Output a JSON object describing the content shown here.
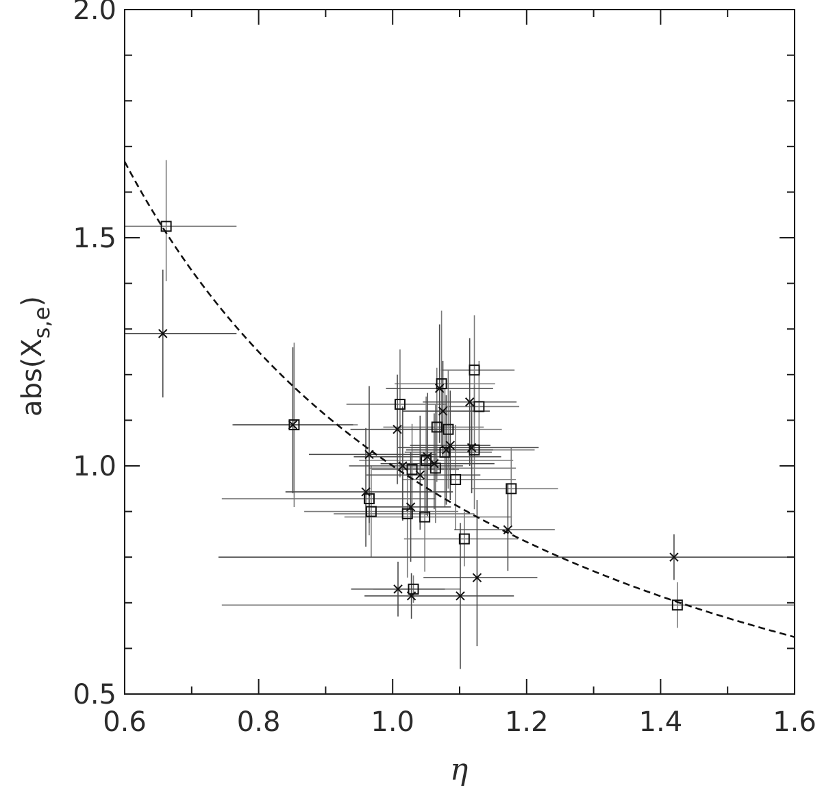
{
  "chart_data": {
    "type": "scatter",
    "xlabel": "η",
    "ylabel": "abs(X",
    "ylabel_subscript": "s,e",
    "ylabel_close": ")",
    "xlim": [
      0.6,
      1.6
    ],
    "ylim": [
      0.5,
      2.0
    ],
    "xticks": [
      0.6,
      0.8,
      1.0,
      1.2,
      1.4,
      1.6
    ],
    "yticks": [
      0.5,
      1.0,
      1.5,
      2.0
    ],
    "xtick_labels": [
      "0.6",
      "0.8",
      "1.0",
      "1.2",
      "1.4",
      "1.6"
    ],
    "ytick_labels": [
      "0.5",
      "1.0",
      "1.5",
      "2.0"
    ],
    "grid": false,
    "curve": {
      "style": "dashed",
      "form": "a / x",
      "a": 1.0,
      "x_range": [
        0.6,
        1.6
      ]
    },
    "series": [
      {
        "marker": "square",
        "points": [
          {
            "x": 0.662,
            "y": 1.525,
            "xerr": [
              0.13,
              0.105
            ],
            "yerr": [
              0.12,
              0.145
            ]
          },
          {
            "x": 0.853,
            "y": 1.09,
            "xerr": [
              0.09,
              0.095
            ],
            "yerr": [
              0.18,
              0.18
            ]
          },
          {
            "x": 0.965,
            "y": 0.928,
            "xerr": [
              0.22,
              0.1
            ],
            "yerr": [
              0.08,
              0.1
            ]
          },
          {
            "x": 0.968,
            "y": 0.9,
            "xerr": [
              0.1,
              0.13
            ],
            "yerr": [
              0.1,
              0.1
            ]
          },
          {
            "x": 1.011,
            "y": 1.135,
            "xerr": [
              0.08,
              0.07
            ],
            "yerr": [
              0.16,
              0.12
            ]
          },
          {
            "x": 1.022,
            "y": 0.895,
            "xerr": [
              0.11,
              0.1
            ],
            "yerr": [
              0.14,
              0.1
            ]
          },
          {
            "x": 1.029,
            "y": 0.992,
            "xerr": [
              0.06,
              0.07
            ],
            "yerr": [
              0.1,
              0.1
            ]
          },
          {
            "x": 1.031,
            "y": 0.73,
            "xerr": [
              0.06,
              0.07
            ],
            "yerr": [
              0.03,
              0.03
            ]
          },
          {
            "x": 1.048,
            "y": 0.888,
            "xerr": [
              0.12,
              0.13
            ],
            "yerr": [
              0.12,
              0.14
            ]
          },
          {
            "x": 1.05,
            "y": 1.012,
            "xerr": [
              0.1,
              0.13
            ],
            "yerr": [
              0.12,
              0.14
            ]
          },
          {
            "x": 1.064,
            "y": 0.995,
            "xerr": [
              0.1,
              0.12
            ],
            "yerr": [
              0.12,
              0.14
            ]
          },
          {
            "x": 1.066,
            "y": 1.085,
            "xerr": [
              0.08,
              0.07
            ],
            "yerr": [
              0.12,
              0.13
            ]
          },
          {
            "x": 1.073,
            "y": 1.18,
            "xerr": [
              0.07,
              0.08
            ],
            "yerr": [
              0.14,
              0.16
            ]
          },
          {
            "x": 1.078,
            "y": 1.03,
            "xerr": [
              0.06,
              0.07
            ],
            "yerr": [
              0.12,
              0.14
            ]
          },
          {
            "x": 1.083,
            "y": 1.08,
            "xerr": [
              0.1,
              0.08
            ],
            "yerr": [
              0.13,
              0.13
            ]
          },
          {
            "x": 1.094,
            "y": 0.97,
            "xerr": [
              0.08,
              0.09
            ],
            "yerr": [
              0.11,
              0.12
            ]
          },
          {
            "x": 1.107,
            "y": 0.84,
            "xerr": [
              0.09,
              0.08
            ],
            "yerr": [
              0.06,
              0.06
            ]
          },
          {
            "x": 1.122,
            "y": 1.21,
            "xerr": [
              0.05,
              0.06
            ],
            "yerr": [
              0.12,
              0.12
            ]
          },
          {
            "x": 1.122,
            "y": 1.035,
            "xerr": [
              0.09,
              0.09
            ],
            "yerr": [
              0.13,
              0.14
            ]
          },
          {
            "x": 1.129,
            "y": 1.13,
            "xerr": [
              0.05,
              0.06
            ],
            "yerr": [
              0.1,
              0.1
            ]
          },
          {
            "x": 1.177,
            "y": 0.95,
            "xerr": [
              0.06,
              0.07
            ],
            "yerr": [
              0.08,
              0.09
            ]
          },
          {
            "x": 1.425,
            "y": 0.695,
            "xerr": [
              0.68,
              0.175
            ],
            "yerr": [
              0.05,
              0.05
            ]
          }
        ]
      },
      {
        "marker": "x",
        "points": [
          {
            "x": 0.657,
            "y": 1.29,
            "xerr": [
              0.08,
              0.11
            ],
            "yerr": [
              0.14,
              0.14
            ]
          },
          {
            "x": 0.851,
            "y": 1.09,
            "xerr": [
              0.09,
              0.09
            ],
            "yerr": [
              0.15,
              0.17
            ]
          },
          {
            "x": 0.96,
            "y": 0.943,
            "xerr": [
              0.12,
              0.13
            ],
            "yerr": [
              0.12,
              0.14
            ]
          },
          {
            "x": 0.965,
            "y": 1.025,
            "xerr": [
              0.09,
              0.1
            ],
            "yerr": [
              0.15,
              0.15
            ]
          },
          {
            "x": 1.007,
            "y": 1.08,
            "xerr": [
              0.07,
              0.07
            ],
            "yerr": [
              0.12,
              0.12
            ]
          },
          {
            "x": 1.008,
            "y": 0.73,
            "xerr": [
              0.07,
              0.07
            ],
            "yerr": [
              0.06,
              0.06
            ]
          },
          {
            "x": 1.015,
            "y": 1.0,
            "xerr": [
              0.08,
              0.09
            ],
            "yerr": [
              0.12,
              0.13
            ]
          },
          {
            "x": 1.027,
            "y": 0.91,
            "xerr": [
              0.06,
              0.06
            ],
            "yerr": [
              0.12,
              0.12
            ]
          },
          {
            "x": 1.028,
            "y": 0.715,
            "xerr": [
              0.07,
              0.07
            ],
            "yerr": [
              0.05,
              0.05
            ]
          },
          {
            "x": 1.041,
            "y": 0.98,
            "xerr": [
              0.08,
              0.09
            ],
            "yerr": [
              0.12,
              0.13
            ]
          },
          {
            "x": 1.052,
            "y": 1.02,
            "xerr": [
              0.11,
              0.11
            ],
            "yerr": [
              0.13,
              0.14
            ]
          },
          {
            "x": 1.062,
            "y": 1.005,
            "xerr": [
              0.08,
              0.09
            ],
            "yerr": [
              0.1,
              0.11
            ]
          },
          {
            "x": 1.07,
            "y": 1.17,
            "xerr": [
              0.08,
              0.08
            ],
            "yerr": [
              0.12,
              0.14
            ]
          },
          {
            "x": 1.075,
            "y": 1.12,
            "xerr": [
              0.06,
              0.07
            ],
            "yerr": [
              0.1,
              0.11
            ]
          },
          {
            "x": 1.08,
            "y": 1.035,
            "xerr": [
              0.06,
              0.07
            ],
            "yerr": [
              0.12,
              0.12
            ]
          },
          {
            "x": 1.086,
            "y": 1.045,
            "xerr": [
              0.06,
              0.06
            ],
            "yerr": [
              0.12,
              0.12
            ]
          },
          {
            "x": 1.101,
            "y": 0.715,
            "xerr": [
              0.08,
              0.08
            ],
            "yerr": [
              0.16,
              0.16
            ]
          },
          {
            "x": 1.115,
            "y": 1.14,
            "xerr": [
              0.07,
              0.07
            ],
            "yerr": [
              0.14,
              0.14
            ]
          },
          {
            "x": 1.118,
            "y": 1.04,
            "xerr": [
              0.11,
              0.1
            ],
            "yerr": [
              0.1,
              0.1
            ]
          },
          {
            "x": 1.126,
            "y": 0.755,
            "xerr": [
              0.08,
              0.09
            ],
            "yerr": [
              0.15,
              0.17
            ]
          },
          {
            "x": 1.172,
            "y": 0.86,
            "xerr": [
              0.08,
              0.07
            ],
            "yerr": [
              0.09,
              0.1
            ]
          },
          {
            "x": 1.42,
            "y": 0.8,
            "xerr": [
              0.68,
              0.18
            ],
            "yerr": [
              0.05,
              0.05
            ]
          }
        ]
      }
    ]
  }
}
